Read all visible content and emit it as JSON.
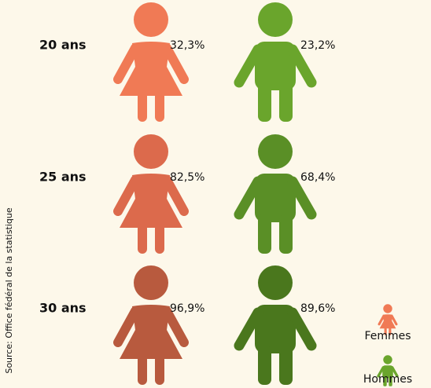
{
  "chart_data": {
    "type": "pictogram",
    "categories": [
      "20 ans",
      "25 ans",
      "30 ans"
    ],
    "series": [
      {
        "name": "Femmes",
        "colors": [
          "#f07a55",
          "#dc6a4c",
          "#b85a3e"
        ],
        "values": [
          32.3,
          82.5,
          96.9
        ],
        "value_labels": [
          "32,3%",
          "82,5%",
          "96,9%"
        ]
      },
      {
        "name": "Hommes",
        "colors": [
          "#6aa52c",
          "#5a8f26",
          "#4a771d"
        ],
        "values": [
          23.2,
          68.4,
          89.6
        ],
        "value_labels": [
          "23,2%",
          "68,4%",
          "89,6%"
        ]
      }
    ],
    "source": "Source: Office fédéral de la statistique",
    "legend": "bottom-right"
  }
}
